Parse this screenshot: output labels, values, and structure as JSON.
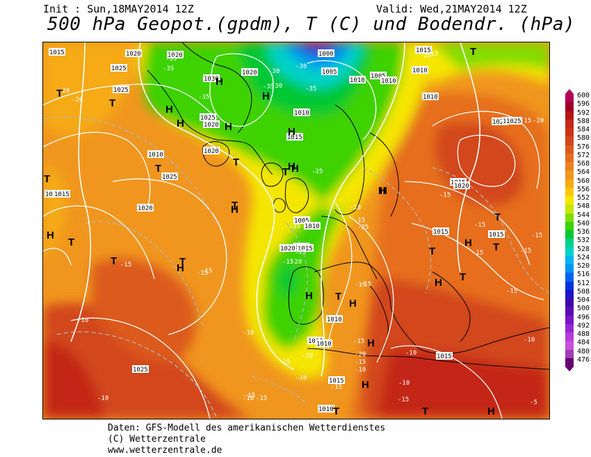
{
  "header": {
    "init": "Init : Sun,18MAY2014 12Z",
    "valid": "Valid: Wed,21MAY2014 12Z",
    "title": "500 hPa Geopot.(gpdm), T (C) und Bodendr. (hPa)"
  },
  "footer": {
    "line1": "Daten: GFS-Modell des amerikanischen Wetterdienstes",
    "line2": "(C) Wetterzentrale",
    "line3": "www.wetterzentrale.de"
  },
  "legend": {
    "units": "gpdm",
    "levels": [
      {
        "value": "600",
        "color": "#b4005a"
      },
      {
        "value": "596",
        "color": "#a00028"
      },
      {
        "value": "592",
        "color": "#b41414"
      },
      {
        "value": "588",
        "color": "#c32814"
      },
      {
        "value": "584",
        "color": "#cd3214"
      },
      {
        "value": "580",
        "color": "#d2461e"
      },
      {
        "value": "576",
        "color": "#dc5a1e"
      },
      {
        "value": "572",
        "color": "#e66e1e"
      },
      {
        "value": "568",
        "color": "#eb821e"
      },
      {
        "value": "564",
        "color": "#f0961e"
      },
      {
        "value": "560",
        "color": "#f5aa14"
      },
      {
        "value": "556",
        "color": "#fac80a"
      },
      {
        "value": "552",
        "color": "#f5e600"
      },
      {
        "value": "548",
        "color": "#c8e600"
      },
      {
        "value": "544",
        "color": "#82dc00"
      },
      {
        "value": "540",
        "color": "#3cd200"
      },
      {
        "value": "536",
        "color": "#00c832"
      },
      {
        "value": "532",
        "color": "#00d28c"
      },
      {
        "value": "528",
        "color": "#00d2c8"
      },
      {
        "value": "524",
        "color": "#00b4f0"
      },
      {
        "value": "520",
        "color": "#0096f0"
      },
      {
        "value": "516",
        "color": "#0064f0"
      },
      {
        "value": "512",
        "color": "#0032dc"
      },
      {
        "value": "508",
        "color": "#1e14c8"
      },
      {
        "value": "504",
        "color": "#3c0aaa"
      },
      {
        "value": "500",
        "color": "#5a0ab4"
      },
      {
        "value": "496",
        "color": "#7814c8"
      },
      {
        "value": "492",
        "color": "#9628d2"
      },
      {
        "value": "488",
        "color": "#b43cdc"
      },
      {
        "value": "484",
        "color": "#c850dc"
      },
      {
        "value": "480",
        "color": "#a03cb4"
      },
      {
        "value": "476",
        "color": "#64006e"
      }
    ]
  },
  "map": {
    "pressure_labels": [
      "1015",
      "1020",
      "1025",
      "1020",
      "1025",
      "1030",
      "1000",
      "1005",
      "1010",
      "1005",
      "1015",
      "1010",
      "1020",
      "1025",
      "1010",
      "1020",
      "1015",
      "1010",
      "1025",
      "1020",
      "1010",
      "1025",
      "1025",
      "1015",
      "1020",
      "1015",
      "1005",
      "1010",
      "1005",
      "1015",
      "1020",
      "1015",
      "1025",
      "1020",
      "1010",
      "1010",
      "1010",
      "1015",
      "1015",
      "1010",
      "1030",
      "1025",
      "1010",
      "1015"
    ],
    "temp_labels": [
      "-20",
      "-20",
      "-35",
      "-35",
      "-30",
      "-35",
      "-35",
      "-30",
      "-35",
      "-30",
      "-25",
      "-20",
      "-20",
      "-15",
      "-20",
      "-15",
      "-15",
      "-15",
      "-15",
      "-25",
      "-25",
      "-20",
      "-25",
      "-15",
      "-15",
      "-15",
      "-15",
      "-15",
      "-15",
      "-15",
      "-10",
      "-10",
      "-10",
      "-15",
      "-20",
      "-15",
      "-10",
      "-15",
      "-15",
      "-15",
      "-15",
      "-10",
      "-15",
      "-10",
      "-10",
      "-5",
      "-10",
      "-10",
      "-20",
      "-15",
      "-15",
      "-15"
    ],
    "highs_lows": [
      "T",
      "T",
      "T",
      "H",
      "T",
      "H",
      "H",
      "H",
      "T",
      "H",
      "H",
      "T",
      "T",
      "H",
      "H",
      "H",
      "T",
      "H",
      "T",
      "T",
      "T",
      "H",
      "T",
      "H",
      "H",
      "H",
      "H",
      "T",
      "T",
      "H",
      "T",
      "H",
      "T",
      "T",
      "H",
      "T",
      "H",
      "H"
    ]
  }
}
